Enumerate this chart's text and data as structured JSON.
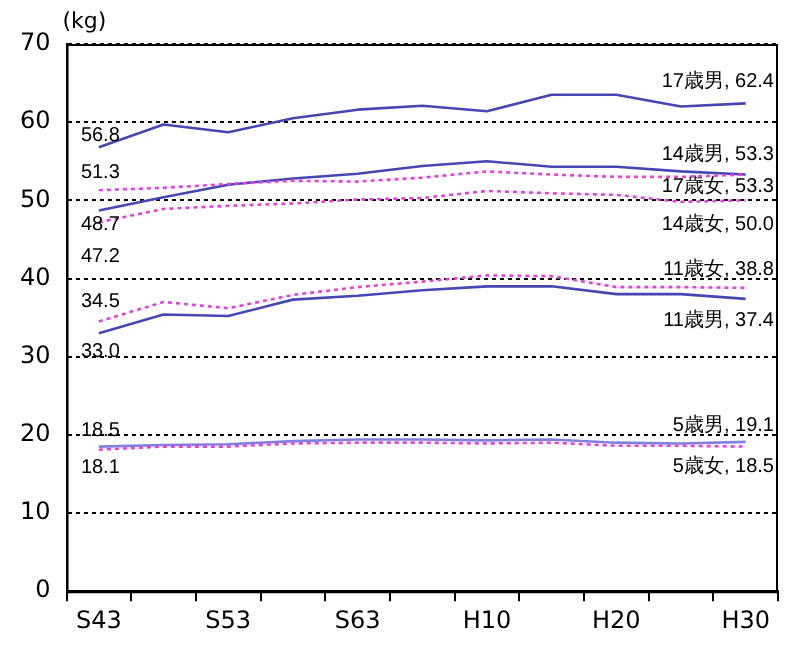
{
  "chart_data": {
    "type": "line",
    "ylabel": "(kg)",
    "categories": [
      "S43",
      null,
      "S53",
      null,
      "S63",
      null,
      "H10",
      null,
      "H20",
      null,
      "H30"
    ],
    "series": [
      {
        "color": "#4646b4",
        "line_style": "solid",
        "values": [
          56.8,
          59.7,
          58.7,
          60.5,
          61.6,
          62.1,
          61.4,
          63.5,
          63.5,
          62.0,
          62.4
        ],
        "value_labels": [
          "56.8",
          null,
          null,
          null,
          null,
          null,
          null,
          null,
          null,
          null,
          null
        ]
      },
      {
        "color": "#4646b4",
        "line_style": "solid",
        "values": [
          48.7,
          50.4,
          52.0,
          52.8,
          53.4,
          54.4,
          55.0,
          54.3,
          54.3,
          53.7,
          53.3
        ],
        "value_labels": [
          "48.7",
          null,
          null,
          null,
          null,
          null,
          null,
          null,
          null,
          null,
          null
        ]
      },
      {
        "color": "#dd44dd",
        "line_style": "dashed",
        "values": [
          51.3,
          51.6,
          52.1,
          52.5,
          52.4,
          52.9,
          53.7,
          53.3,
          53.0,
          53.0,
          53.3
        ],
        "value_labels": [
          "51.3",
          null,
          null,
          null,
          null,
          null,
          null,
          null,
          null,
          null,
          null
        ]
      },
      {
        "color": "#dd44dd",
        "line_style": "dashed",
        "values": [
          47.2,
          48.9,
          49.3,
          49.6,
          50.1,
          50.3,
          51.2,
          50.9,
          50.7,
          49.8,
          50.0
        ],
        "value_labels": [
          "47.2",
          null,
          null,
          null,
          null,
          null,
          null,
          null,
          null,
          null,
          null
        ]
      },
      {
        "color": "#dd44dd",
        "line_style": "dashed",
        "values": [
          34.5,
          37.0,
          36.2,
          37.9,
          38.9,
          39.6,
          40.4,
          40.3,
          38.9,
          38.9,
          38.8
        ],
        "value_labels": [
          "34.5",
          null,
          null,
          null,
          null,
          null,
          null,
          null,
          null,
          null,
          null
        ]
      },
      {
        "color": "#4646b4",
        "line_style": "solid",
        "values": [
          33.0,
          35.4,
          35.2,
          37.3,
          37.8,
          38.5,
          39.0,
          39.0,
          38.0,
          38.0,
          37.4
        ],
        "value_labels": [
          "33.0",
          null,
          null,
          null,
          null,
          null,
          null,
          null,
          null,
          null,
          null
        ]
      },
      {
        "color": "#8080e0",
        "line_style": "solid",
        "values": [
          18.5,
          18.7,
          18.8,
          19.2,
          19.4,
          19.4,
          19.3,
          19.4,
          19.0,
          18.9,
          19.1
        ],
        "value_labels": [
          "18.5",
          null,
          null,
          null,
          null,
          null,
          null,
          null,
          null,
          null,
          null
        ]
      },
      {
        "color": "#dd44dd",
        "line_style": "dashed",
        "values": [
          18.1,
          18.5,
          18.5,
          18.9,
          19.0,
          19.0,
          18.9,
          19.0,
          18.6,
          18.6,
          18.5
        ],
        "value_labels": [
          "18.1",
          null,
          null,
          null,
          null,
          null,
          null,
          null,
          null,
          null,
          null
        ]
      }
    ],
    "annotations": [
      {
        "text": "17歳男, 62.4",
        "x": "H30",
        "y": 62.4
      },
      {
        "text": "14歳男, 53.3",
        "x": "H30",
        "y": 53.3
      },
      {
        "text": "17歳女, 53.3",
        "x": "H30",
        "y": 53.3
      },
      {
        "text": "14歳女, 50.0",
        "x": "H30",
        "y": 50.0
      },
      {
        "text": "11歳女, 38.8",
        "x": "H30",
        "y": 38.8
      },
      {
        "text": "11歳男, 37.4",
        "x": "H30",
        "y": 37.4
      },
      {
        "text": "5歳男, 19.1",
        "x": "H30",
        "y": 19.1
      },
      {
        "text": "5歳女, 18.5",
        "x": "H30",
        "y": 18.5
      }
    ],
    "ylim": [
      0,
      70
    ],
    "yticks": [
      0,
      10,
      20,
      30,
      40,
      50,
      60,
      70
    ],
    "grid": "y",
    "legend": false,
    "marker": "none"
  }
}
